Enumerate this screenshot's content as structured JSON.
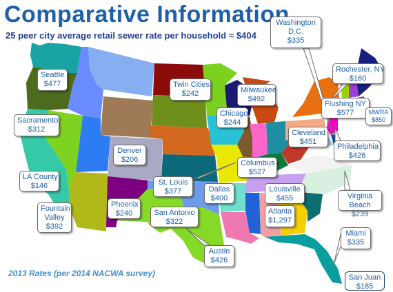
{
  "header": {
    "title": "Comparative Information",
    "subtitle": "25 peer city average retail sewer rate per household = $404"
  },
  "footnote": "2013 Rates (per 2014 NACWA survey)",
  "cities": [
    {
      "id": "washington",
      "name": "Washington D.C.",
      "line1": "Washington",
      "line2": "D.C.",
      "rate": "$335"
    },
    {
      "id": "seattle",
      "name": "Seattle",
      "line1": "Seattle",
      "rate": "$477"
    },
    {
      "id": "twin-cities",
      "name": "Twin Cities",
      "line1": "Twin Cities",
      "rate": "$242"
    },
    {
      "id": "milwaukee",
      "name": "Milwaukee",
      "line1": "Milwaukee",
      "rate": "$492"
    },
    {
      "id": "rochester",
      "name": "Rochester, NY",
      "line1": "Rochester, NY",
      "rate": "$160"
    },
    {
      "id": "sacramento",
      "name": "Sacramento",
      "line1": "Sacramento",
      "rate": "$312"
    },
    {
      "id": "chicago",
      "name": "Chicago",
      "line1": "Chicago",
      "rate": "$244"
    },
    {
      "id": "flushing",
      "name": "Flushing NY",
      "line1": "Flushing NY",
      "rate": "$577"
    },
    {
      "id": "mwra",
      "name": "MWRA",
      "line1": "MWRA",
      "rate": "$850"
    },
    {
      "id": "denver",
      "name": "Denver",
      "line1": "Denver",
      "rate": "$206"
    },
    {
      "id": "cleveland",
      "name": "Cleveland",
      "line1": "Cleveland",
      "rate": "$451"
    },
    {
      "id": "philadelphia",
      "name": "Philadelphia",
      "line1": "Philadelphia",
      "rate": "$426"
    },
    {
      "id": "columbus",
      "name": "Columbus",
      "line1": "Columbus",
      "rate": "$527"
    },
    {
      "id": "la-county",
      "name": "LA County",
      "line1": "LA County",
      "rate": "$146"
    },
    {
      "id": "st-louis",
      "name": "St. Louis",
      "line1": "St. Louis",
      "rate": "$377"
    },
    {
      "id": "dallas",
      "name": "Dallas",
      "line1": "Dallas",
      "rate": "$400"
    },
    {
      "id": "louisville",
      "name": "Louisville",
      "line1": "Louisville",
      "rate": "$455"
    },
    {
      "id": "virginia-beach",
      "name": "Virginia Beach",
      "line1": "Virginia",
      "line2": "Beach",
      "rate": "$239"
    },
    {
      "id": "fountain-valley",
      "name": "Fountain Valley",
      "line1": "Fountain",
      "line2": "Valley",
      "rate": "$392"
    },
    {
      "id": "phoenix",
      "name": "Phoenix",
      "line1": "Phoenix",
      "rate": "$240"
    },
    {
      "id": "san-antonio",
      "name": "San Antonio",
      "line1": "San Antonio",
      "rate": "$322"
    },
    {
      "id": "atlanta",
      "name": "Atlanta",
      "line1": "Atlanta",
      "rate": "$1,297"
    },
    {
      "id": "miami",
      "name": "Miami",
      "line1": "Miami",
      "rate": "$335"
    },
    {
      "id": "austin",
      "name": "Austin",
      "line1": "Austin",
      "rate": "$426"
    },
    {
      "id": "san-juan",
      "name": "San Juan",
      "line1": "San Juan",
      "rate": "$185"
    }
  ],
  "colors": {
    "title": "#1f5fa8",
    "subtitle": "#1f3f8f",
    "footnote": "#3f8fd0",
    "callout_text": "#1f5fa8"
  }
}
